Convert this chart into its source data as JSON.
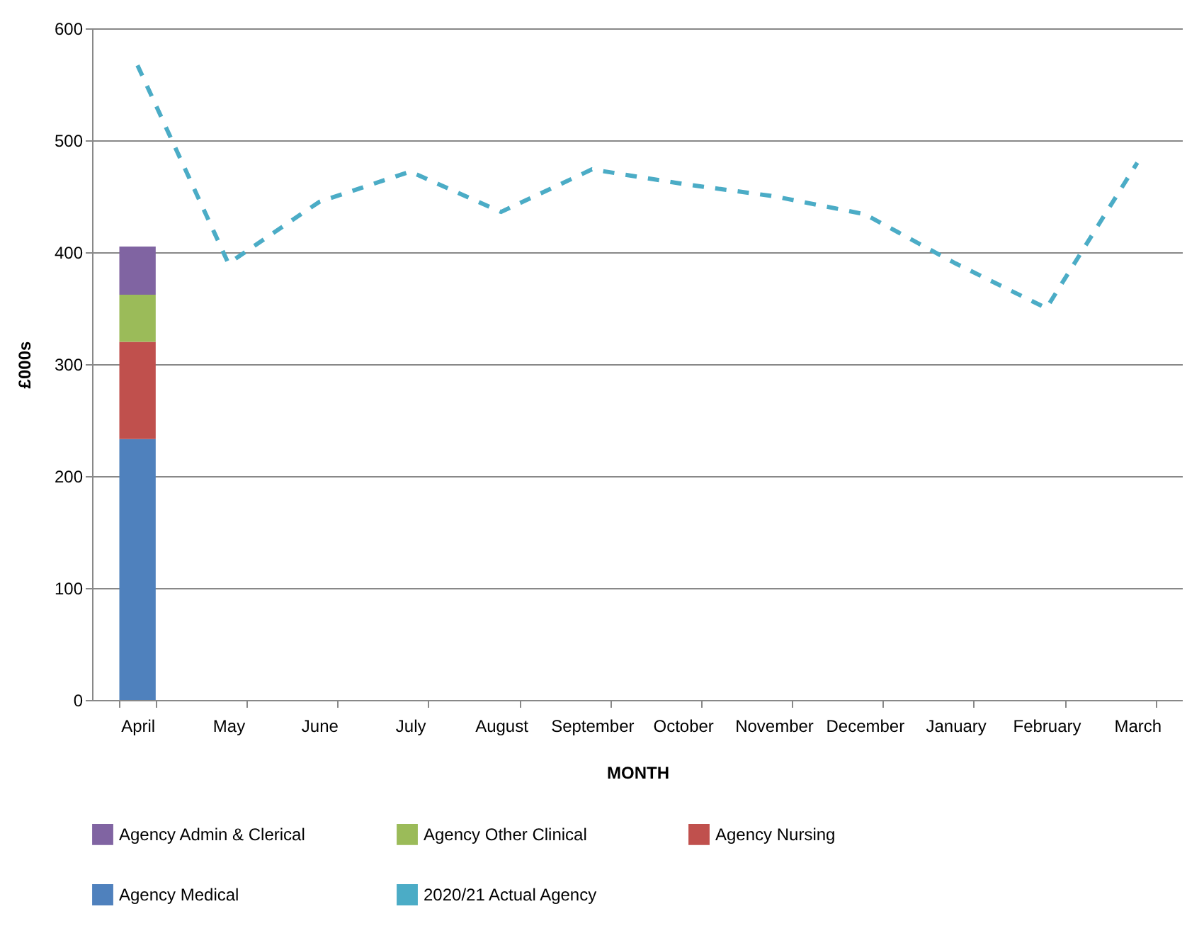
{
  "chart_data": {
    "type": "bar",
    "stacked": true,
    "xlabel": "MONTH",
    "ylabel": "£000s",
    "categories": [
      "April",
      "May",
      "June",
      "July",
      "August",
      "September",
      "October",
      "November",
      "December",
      "January",
      "February",
      "March"
    ],
    "series": [
      {
        "name": "Agency Medical",
        "color": "#4f81bd",
        "values": [
          233,
          null,
          null,
          null,
          null,
          null,
          null,
          null,
          null,
          null,
          null,
          null
        ]
      },
      {
        "name": "Agency Nursing",
        "color": "#c0504d",
        "values": [
          87,
          null,
          null,
          null,
          null,
          null,
          null,
          null,
          null,
          null,
          null,
          null
        ]
      },
      {
        "name": "Agency Other Clinical",
        "color": "#9bbb59",
        "values": [
          42,
          null,
          null,
          null,
          null,
          null,
          null,
          null,
          null,
          null,
          null,
          null
        ]
      },
      {
        "name": "Agency Admin & Clerical",
        "color": "#8064a2",
        "values": [
          43,
          null,
          null,
          null,
          null,
          null,
          null,
          null,
          null,
          null,
          null,
          null
        ]
      },
      {
        "name": "2020/21 Actual Agency",
        "type": "line",
        "line_style": "dashed",
        "color": "#4bacc6",
        "values": [
          567,
          390,
          445,
          472,
          436,
          474,
          461,
          450,
          434,
          390,
          350,
          480
        ]
      }
    ],
    "ylim": [
      0,
      600
    ],
    "yticks": [
      0,
      100,
      200,
      300,
      400,
      500,
      600
    ],
    "grid": "y",
    "legend": "bottom"
  }
}
